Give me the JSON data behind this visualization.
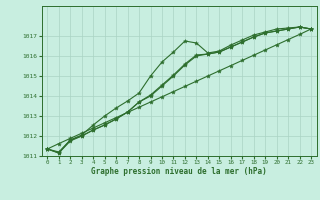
{
  "title": "Graphe pression niveau de la mer (hPa)",
  "bg_color": "#c8eee0",
  "grid_color": "#aad4c4",
  "line_color": "#2d6e2d",
  "xlim": [
    -0.5,
    23.5
  ],
  "ylim": [
    1011,
    1018
  ],
  "yticks": [
    1011,
    1012,
    1013,
    1014,
    1015,
    1016,
    1017
  ],
  "xticks": [
    0,
    1,
    2,
    3,
    4,
    5,
    6,
    7,
    8,
    9,
    10,
    11,
    12,
    13,
    14,
    15,
    16,
    17,
    18,
    19,
    20,
    21,
    22,
    23
  ],
  "series": [
    {
      "x": [
        0,
        1,
        2,
        3,
        4,
        5,
        6,
        7,
        8,
        9,
        10,
        11,
        12,
        13,
        14,
        15,
        16,
        17,
        18,
        19,
        20,
        21,
        22,
        23
      ],
      "y": [
        1011.35,
        1011.2,
        1011.8,
        1012.05,
        1012.55,
        1013.0,
        1013.4,
        1013.75,
        1014.15,
        1015.0,
        1015.7,
        1016.2,
        1016.75,
        1016.65,
        1016.15,
        1016.25,
        1016.55,
        1016.8,
        1017.05,
        1017.2,
        1017.35,
        1017.4,
        1017.45,
        1017.35
      ]
    },
    {
      "x": [
        0,
        1,
        2,
        3,
        4,
        5,
        6,
        7,
        8,
        9,
        10,
        11,
        12,
        13,
        14,
        15,
        16,
        17,
        18,
        19,
        20,
        21,
        22,
        23
      ],
      "y": [
        1011.35,
        1011.15,
        1011.8,
        1012.0,
        1012.3,
        1012.55,
        1012.85,
        1013.2,
        1013.7,
        1014.0,
        1014.5,
        1015.0,
        1015.55,
        1016.0,
        1016.1,
        1016.2,
        1016.45,
        1016.7,
        1016.95,
        1017.15,
        1017.25,
        1017.35,
        1017.45,
        1017.35
      ]
    },
    {
      "x": [
        0,
        1,
        2,
        3,
        4,
        5,
        6,
        7,
        8,
        9,
        10,
        11,
        12,
        13,
        14,
        15,
        16,
        17,
        18,
        19,
        20,
        21,
        22,
        23
      ],
      "y": [
        1011.35,
        1011.15,
        1011.75,
        1012.0,
        1012.3,
        1012.55,
        1012.85,
        1013.2,
        1013.7,
        1014.05,
        1014.55,
        1015.05,
        1015.6,
        1016.05,
        1016.1,
        1016.2,
        1016.45,
        1016.7,
        1016.95,
        1017.15,
        1017.25,
        1017.35,
        1017.45,
        1017.35
      ]
    },
    {
      "x": [
        0,
        1,
        2,
        3,
        4,
        5,
        6,
        7,
        8,
        9,
        10,
        11,
        12,
        13,
        14,
        15,
        16,
        17,
        18,
        19,
        20,
        21,
        22,
        23
      ],
      "y": [
        1011.35,
        1011.62,
        1011.88,
        1012.14,
        1012.4,
        1012.66,
        1012.92,
        1013.18,
        1013.44,
        1013.7,
        1013.96,
        1014.22,
        1014.48,
        1014.74,
        1015.0,
        1015.26,
        1015.52,
        1015.78,
        1016.04,
        1016.3,
        1016.56,
        1016.82,
        1017.08,
        1017.35
      ]
    }
  ]
}
